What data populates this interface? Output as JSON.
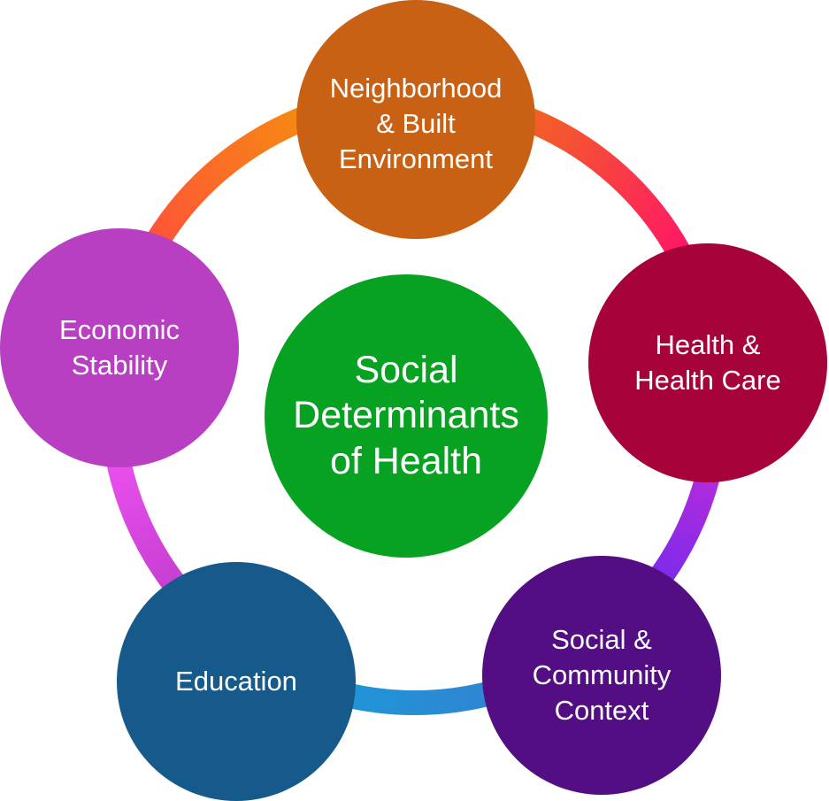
{
  "diagram": {
    "center": {
      "label": "Social\nDeterminants\nof Health",
      "color": "#07a221"
    },
    "nodes": [
      {
        "id": "neighborhood",
        "label": "Neighborhood\n& Built\nEnvironment",
        "color": "#c96114"
      },
      {
        "id": "health",
        "label": "Health &\nHealth Care",
        "color": "#a5033a"
      },
      {
        "id": "social",
        "label": "Social &\nCommunity\nContext",
        "color": "#520e82"
      },
      {
        "id": "education",
        "label": "Education",
        "color": "#155a8a"
      },
      {
        "id": "economic",
        "label": "Economic\nStability",
        "color": "#b83fc2"
      }
    ],
    "ring_colors": {
      "neighborhood_to_health": [
        "#f06a1e",
        "#ff1a63"
      ],
      "health_to_social": [
        "#c22bd9",
        "#7c2bea"
      ],
      "social_to_education": [
        "#2f86d0",
        "#1f95d9"
      ],
      "education_to_economic": [
        "#c83fd2",
        "#ee52f2"
      ],
      "economic_to_neighborhood": [
        "#ff5438",
        "#f58a12"
      ]
    }
  }
}
